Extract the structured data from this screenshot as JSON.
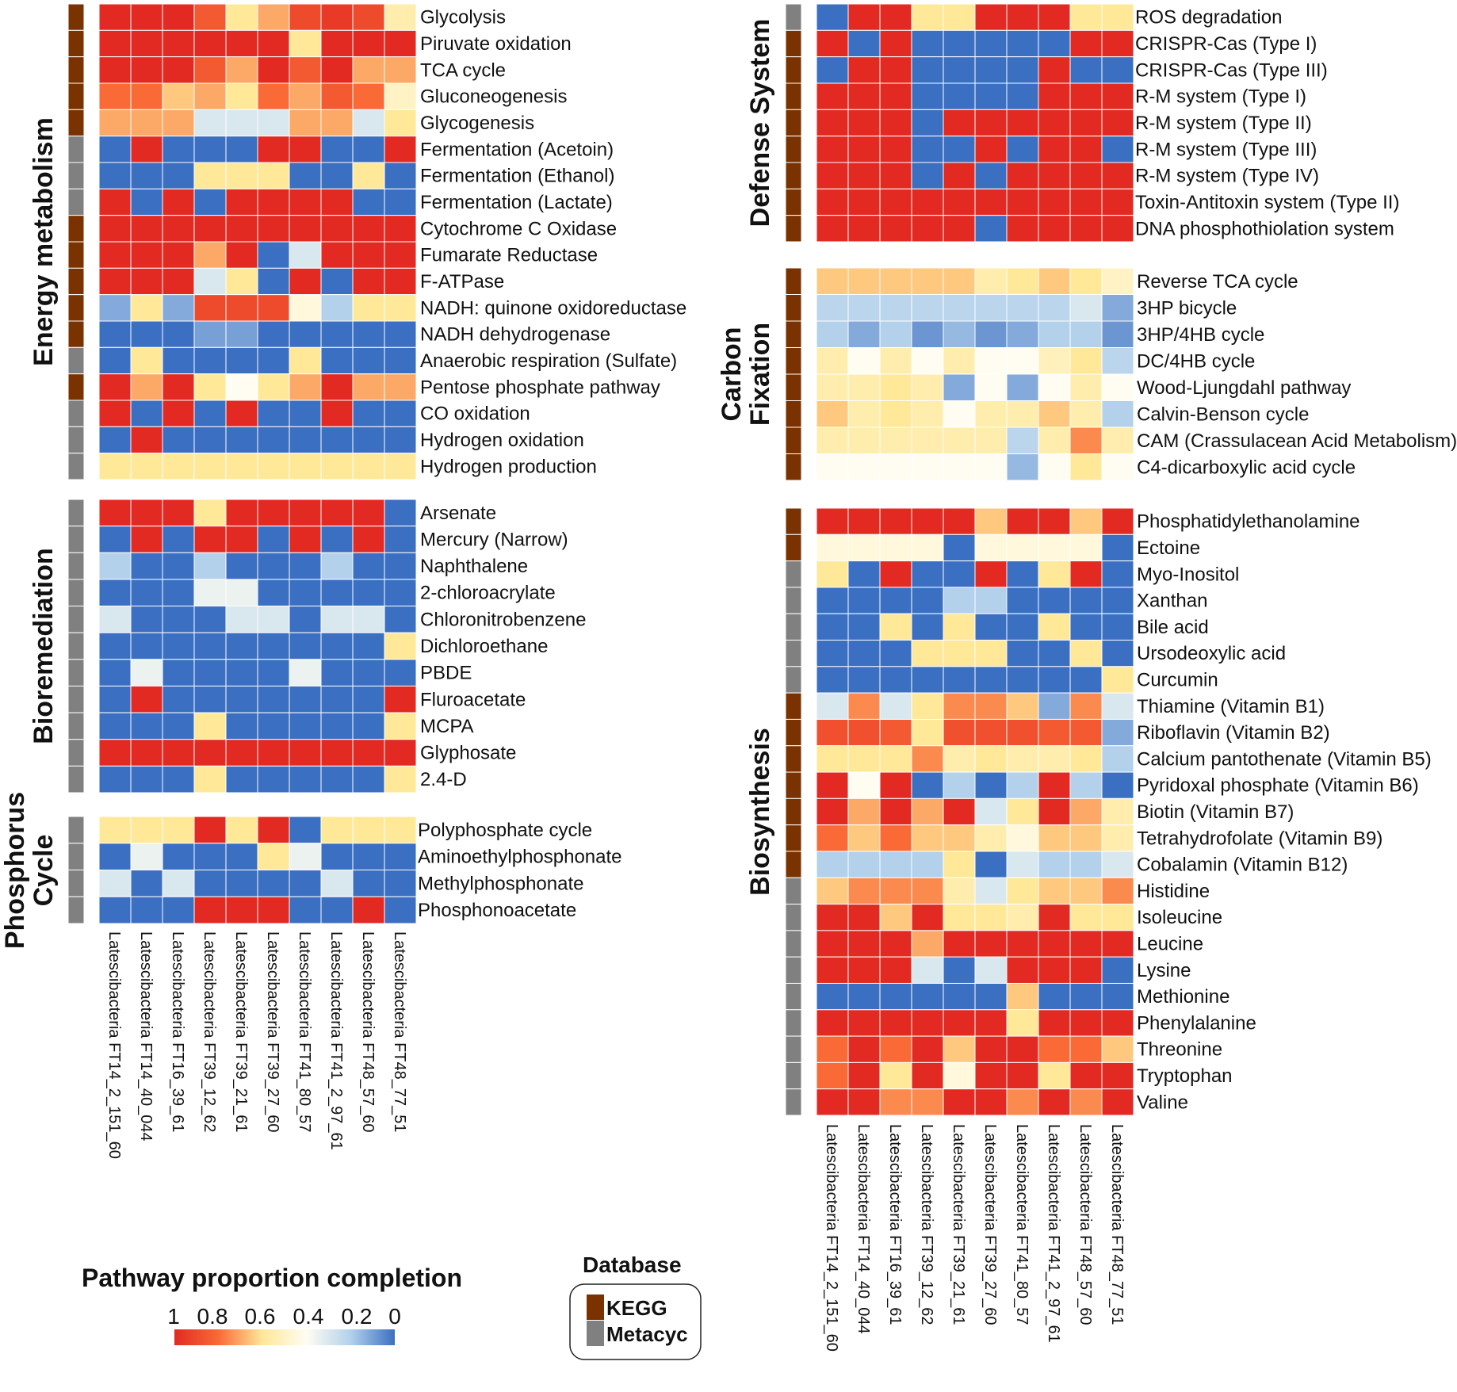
{
  "colors": {
    "kegg": "#7a3300",
    "metacyc": "#808080",
    "scale": [
      "#3b6fc1",
      "#b3d1eb",
      "#fffdf2",
      "#ffe898",
      "#f96a36",
      "#e22a22"
    ]
  },
  "legend": {
    "title": "Pathway proportion completion",
    "ticks": [
      "1",
      "0.8",
      "0.6",
      "0.4",
      "0.2",
      "0"
    ]
  },
  "db_legend": {
    "title": "Database",
    "items": [
      {
        "label": "KEGG",
        "key": "kegg"
      },
      {
        "label": "Metacyc",
        "key": "metacyc"
      }
    ]
  },
  "chart_data": [
    {
      "type": "heatmap",
      "title": "Energy metabolism",
      "columns": [
        "Latescibacteria FT14_2_151_60",
        "Latescibacteria FT14_40_044",
        "Latescibacteria FT16_39_61",
        "Latescibacteria FT39_12_62",
        "Latescibacteria FT39_21_61",
        "Latescibacteria FT39_27_60",
        "Latescibacteria FT41_80_57",
        "Latescibacteria FT41_2_97_61",
        "Latescibacteria FT48_57_60",
        "Latescibacteria FT48_77_51"
      ],
      "rows": [
        "Glycolysis",
        "Piruvate oxidation",
        "TCA cycle",
        "Gluconeogenesis",
        "Glycogenesis",
        "Fermentation (Acetoin)",
        "Fermentation (Ethanol)",
        "Fermentation (Lactate)",
        "Cytochrome C Oxidase",
        "Fumarate Reductase",
        "F-ATPase",
        "NADH: quinone oxidoreductase",
        "NADH dehydrogenase",
        "Anaerobic respiration (Sulfate)",
        "Pentose phosphate pathway",
        "CO oxidation",
        "Hydrogen oxidation",
        "Hydrogen production"
      ],
      "database": [
        "KEGG",
        "KEGG",
        "KEGG",
        "KEGG",
        "KEGG",
        "Metacyc",
        "Metacyc",
        "Metacyc",
        "KEGG",
        "KEGG",
        "KEGG",
        "KEGG",
        "KEGG",
        "Metacyc",
        "KEGG",
        "Metacyc",
        "Metacyc",
        "Metacyc"
      ],
      "values": [
        [
          1,
          1,
          1,
          0.85,
          0.6,
          0.7,
          0.9,
          0.95,
          0.9,
          0.55
        ],
        [
          1,
          1,
          1,
          1,
          1,
          1,
          0.6,
          1,
          1,
          1
        ],
        [
          1,
          1,
          1,
          0.85,
          0.7,
          1,
          0.85,
          1,
          0.7,
          0.7
        ],
        [
          0.8,
          0.8,
          0.65,
          0.7,
          0.6,
          0.8,
          0.7,
          0.85,
          0.8,
          0.5
        ],
        [
          0.7,
          0.7,
          0.7,
          0.3,
          0.3,
          0.3,
          0.7,
          0.7,
          0.3,
          0.6
        ],
        [
          0,
          1,
          0,
          0,
          0,
          1,
          1,
          0,
          0,
          1
        ],
        [
          0,
          0,
          0,
          0.6,
          0.6,
          0.6,
          0,
          0,
          0.6,
          0
        ],
        [
          1,
          0,
          1,
          0,
          1,
          1,
          1,
          1,
          0,
          0
        ],
        [
          1,
          1,
          1,
          1,
          1,
          1,
          1,
          1,
          1,
          1
        ],
        [
          1,
          1,
          1,
          0.7,
          1,
          0,
          0.3,
          1,
          1,
          1
        ],
        [
          1,
          1,
          1,
          0.3,
          0.6,
          0,
          1,
          0,
          1,
          1
        ],
        [
          0.12,
          0.6,
          0.12,
          0.9,
          0.9,
          0.9,
          0.45,
          0.2,
          0.6,
          0.6
        ],
        [
          0,
          0,
          0,
          0.1,
          0.1,
          0,
          0,
          0,
          0,
          0
        ],
        [
          0,
          0.6,
          0,
          0,
          0,
          0,
          0.6,
          0,
          0,
          0
        ],
        [
          1,
          0.7,
          1,
          0.6,
          0.4,
          0.6,
          0.7,
          1,
          0.7,
          0.7
        ],
        [
          1,
          0,
          1,
          0,
          1,
          0,
          0,
          1,
          0,
          0
        ],
        [
          0,
          1,
          0,
          0,
          0,
          0,
          0,
          0,
          0,
          0
        ],
        [
          0.6,
          0.6,
          0.6,
          0.6,
          0.6,
          0.6,
          0.6,
          0.6,
          0.6,
          0.6
        ]
      ]
    },
    {
      "type": "heatmap",
      "title": "Bioremediation",
      "columns": [
        "Latescibacteria FT14_2_151_60",
        "Latescibacteria FT14_40_044",
        "Latescibacteria FT16_39_61",
        "Latescibacteria FT39_12_62",
        "Latescibacteria FT39_21_61",
        "Latescibacteria FT39_27_60",
        "Latescibacteria FT41_80_57",
        "Latescibacteria FT41_2_97_61",
        "Latescibacteria FT48_57_60",
        "Latescibacteria FT48_77_51"
      ],
      "rows": [
        "Arsenate",
        "Mercury (Narrow)",
        "Naphthalene",
        "2-chloroacrylate",
        "Chloronitrobenzene",
        "Dichloroethane",
        "PBDE",
        "Fluroacetate",
        "MCPA",
        "Glyphosate",
        "2.4-D"
      ],
      "database": [
        "Metacyc",
        "Metacyc",
        "Metacyc",
        "Metacyc",
        "Metacyc",
        "Metacyc",
        "Metacyc",
        "Metacyc",
        "Metacyc",
        "Metacyc",
        "Metacyc"
      ],
      "values": [
        [
          1,
          1,
          1,
          0.6,
          1,
          1,
          1,
          1,
          1,
          0
        ],
        [
          0,
          1,
          0,
          1,
          1,
          0,
          1,
          0,
          1,
          0
        ],
        [
          0.2,
          0,
          0,
          0.2,
          0,
          0,
          0,
          0.2,
          0,
          0
        ],
        [
          0,
          0,
          0,
          0.35,
          0.35,
          0,
          0,
          0,
          0,
          0
        ],
        [
          0.3,
          0,
          0,
          0,
          0.3,
          0.3,
          0,
          0.3,
          0.3,
          0
        ],
        [
          0,
          0,
          0,
          0,
          0,
          0,
          0,
          0,
          0,
          0.6
        ],
        [
          0,
          0.35,
          0,
          0,
          0,
          0,
          0.35,
          0,
          0,
          0
        ],
        [
          0,
          1,
          0,
          0,
          0,
          0,
          0,
          0,
          0,
          1
        ],
        [
          0,
          0,
          0,
          0.6,
          0,
          0,
          0,
          0,
          0,
          0.6
        ],
        [
          1,
          1,
          1,
          1,
          1,
          1,
          1,
          1,
          1,
          1
        ],
        [
          0,
          0,
          0,
          0.6,
          0,
          0,
          0,
          0,
          0,
          0.6
        ]
      ]
    },
    {
      "type": "heatmap",
      "title": "Phosphorus Cycle",
      "columns": [
        "Latescibacteria FT14_2_151_60",
        "Latescibacteria FT14_40_044",
        "Latescibacteria FT16_39_61",
        "Latescibacteria FT39_12_62",
        "Latescibacteria FT39_21_61",
        "Latescibacteria FT39_27_60",
        "Latescibacteria FT41_80_57",
        "Latescibacteria FT41_2_97_61",
        "Latescibacteria FT48_57_60",
        "Latescibacteria FT48_77_51"
      ],
      "rows": [
        "Polyphosphate cycle",
        "Aminoethylphosphonate",
        "Methylphosphonate",
        "Phosphonoacetate"
      ],
      "database": [
        "Metacyc",
        "Metacyc",
        "Metacyc",
        "Metacyc"
      ],
      "values": [
        [
          0.6,
          0.6,
          0.6,
          1,
          0.6,
          1,
          0,
          0.6,
          0.6,
          0.6
        ],
        [
          0,
          0.35,
          0,
          0,
          0,
          0.6,
          0.35,
          0,
          0,
          0
        ],
        [
          0.3,
          0,
          0.3,
          0,
          0,
          0,
          0,
          0.3,
          0,
          0
        ],
        [
          0,
          0,
          0,
          1,
          1,
          1,
          0,
          0,
          1,
          0
        ]
      ]
    },
    {
      "type": "heatmap",
      "title": "Defense System",
      "columns": [
        "Latescibacteria FT14_2_151_60",
        "Latescibacteria FT14_40_044",
        "Latescibacteria FT16_39_61",
        "Latescibacteria FT39_12_62",
        "Latescibacteria FT39_21_61",
        "Latescibacteria FT39_27_60",
        "Latescibacteria FT41_80_57",
        "Latescibacteria FT41_2_97_61",
        "Latescibacteria FT48_57_60",
        "Latescibacteria FT48_77_51"
      ],
      "rows": [
        "ROS degradation",
        "CRISPR-Cas (Type I)",
        "CRISPR-Cas (Type III)",
        "R-M system (Type I)",
        "R-M system (Type II)",
        "R-M system (Type III)",
        "R-M system (Type IV)",
        "Toxin-Antitoxin system (Type II)",
        "DNA phosphothiolation system"
      ],
      "database": [
        "Metacyc",
        "KEGG",
        "KEGG",
        "KEGG",
        "KEGG",
        "KEGG",
        "KEGG",
        "KEGG",
        "KEGG"
      ],
      "values": [
        [
          0,
          1,
          1,
          0.6,
          0.6,
          1,
          1,
          1,
          0.6,
          0.6
        ],
        [
          1,
          0,
          1,
          0,
          0,
          0,
          0,
          0,
          1,
          1
        ],
        [
          0,
          1,
          1,
          0,
          0,
          0,
          0,
          1,
          0,
          0
        ],
        [
          1,
          1,
          1,
          0,
          0,
          0,
          0,
          1,
          1,
          1
        ],
        [
          1,
          1,
          1,
          0,
          1,
          1,
          1,
          1,
          1,
          1
        ],
        [
          1,
          1,
          1,
          0,
          0,
          1,
          0,
          1,
          1,
          0
        ],
        [
          1,
          1,
          1,
          0,
          1,
          0,
          1,
          1,
          1,
          1
        ],
        [
          1,
          1,
          1,
          1,
          1,
          1,
          1,
          1,
          1,
          1
        ],
        [
          1,
          1,
          1,
          1,
          1,
          0,
          1,
          1,
          1,
          1
        ]
      ]
    },
    {
      "type": "heatmap",
      "title": "Carbon Fixation",
      "columns": [
        "Latescibacteria FT14_2_151_60",
        "Latescibacteria FT14_40_044",
        "Latescibacteria FT16_39_61",
        "Latescibacteria FT39_12_62",
        "Latescibacteria FT39_21_61",
        "Latescibacteria FT39_27_60",
        "Latescibacteria FT41_80_57",
        "Latescibacteria FT41_2_97_61",
        "Latescibacteria FT48_57_60",
        "Latescibacteria FT48_77_51"
      ],
      "rows": [
        "Reverse TCA cycle",
        "3HP bicycle",
        "3HP/4HB cycle",
        "DC/4HB cycle",
        "Wood-Ljungdahl pathway",
        "Calvin-Benson cycle",
        "CAM (Crassulacean Acid Metabolism)",
        "C4-dicarboxylic acid cycle"
      ],
      "database": [
        "KEGG",
        "KEGG",
        "KEGG",
        "KEGG",
        "KEGG",
        "KEGG",
        "KEGG",
        "KEGG"
      ],
      "values": [
        [
          0.65,
          0.65,
          0.65,
          0.65,
          0.65,
          0.55,
          0.6,
          0.65,
          0.6,
          0.5
        ],
        [
          0.22,
          0.22,
          0.22,
          0.22,
          0.22,
          0.22,
          0.22,
          0.22,
          0.3,
          0.12
        ],
        [
          0.2,
          0.12,
          0.2,
          0.08,
          0.15,
          0.08,
          0.12,
          0.2,
          0.2,
          0.08
        ],
        [
          0.55,
          0.4,
          0.55,
          0.4,
          0.55,
          0.4,
          0.4,
          0.52,
          0.6,
          0.22
        ],
        [
          0.55,
          0.55,
          0.6,
          0.55,
          0.12,
          0.4,
          0.12,
          0.4,
          0.55,
          0.4
        ],
        [
          0.65,
          0.55,
          0.6,
          0.55,
          0.4,
          0.55,
          0.55,
          0.65,
          0.55,
          0.2
        ],
        [
          0.55,
          0.55,
          0.55,
          0.55,
          0.55,
          0.55,
          0.22,
          0.55,
          0.75,
          0.55
        ],
        [
          0.4,
          0.4,
          0.4,
          0.4,
          0.4,
          0.4,
          0.15,
          0.4,
          0.6,
          0.4
        ]
      ]
    },
    {
      "type": "heatmap",
      "title": "Biosynthesis",
      "columns": [
        "Latescibacteria FT14_2_151_60",
        "Latescibacteria FT14_40_044",
        "Latescibacteria FT16_39_61",
        "Latescibacteria FT39_12_62",
        "Latescibacteria FT39_21_61",
        "Latescibacteria FT39_27_60",
        "Latescibacteria FT41_80_57",
        "Latescibacteria FT41_2_97_61",
        "Latescibacteria FT48_57_60",
        "Latescibacteria FT48_77_51"
      ],
      "rows": [
        "Phosphatidylethanolamine",
        "Ectoine",
        "Myo-Inositol",
        "Xanthan",
        "Bile acid",
        "Ursodeoxylic acid",
        "Curcumin",
        "Thiamine (Vitamin B1)",
        "Riboflavin (Vitamin B2)",
        "Calcium pantothenate (Vitamin B5)",
        "Pyridoxal phosphate (Vitamin B6)",
        "Biotin (Vitamin B7)",
        "Tetrahydrofolate (Vitamin B9)",
        "Cobalamin (Vitamin B12)",
        "Histidine",
        "Isoleucine",
        "Leucine",
        "Lysine",
        "Methionine",
        "Phenylalanine",
        "Threonine",
        "Tryptophan",
        "Valine"
      ],
      "database": [
        "KEGG",
        "KEGG",
        "Metacyc",
        "Metacyc",
        "Metacyc",
        "Metacyc",
        "Metacyc",
        "KEGG",
        "KEGG",
        "KEGG",
        "KEGG",
        "KEGG",
        "KEGG",
        "KEGG",
        "Metacyc",
        "Metacyc",
        "Metacyc",
        "Metacyc",
        "Metacyc",
        "Metacyc",
        "Metacyc",
        "Metacyc",
        "Metacyc"
      ],
      "values": [
        [
          1,
          1,
          1,
          1,
          1,
          0.65,
          1,
          1,
          0.65,
          1
        ],
        [
          0.45,
          0.45,
          0.45,
          0.45,
          0,
          0.45,
          0.45,
          0.45,
          0.45,
          0
        ],
        [
          0.6,
          0,
          1,
          0,
          0,
          1,
          0,
          0.6,
          1,
          0
        ],
        [
          0,
          0,
          0,
          0,
          0.2,
          0.2,
          0,
          0,
          0,
          0
        ],
        [
          0,
          0,
          0.6,
          0,
          0.6,
          0,
          0,
          0.6,
          0,
          0
        ],
        [
          0,
          0,
          0,
          0.6,
          0.6,
          0.6,
          0,
          0,
          0.6,
          0
        ],
        [
          0,
          0,
          0,
          0,
          0,
          0,
          0,
          0,
          0,
          0.6
        ],
        [
          0.3,
          0.75,
          0.3,
          0.6,
          0.75,
          0.75,
          0.65,
          0.12,
          0.75,
          0.3
        ],
        [
          0.88,
          0.88,
          0.85,
          0.6,
          0.88,
          0.88,
          0.88,
          0.85,
          0.85,
          0.12
        ],
        [
          0.6,
          0.6,
          0.6,
          0.75,
          0.55,
          0.6,
          0.55,
          0.55,
          0.6,
          0.2
        ],
        [
          1,
          0.4,
          1,
          0,
          0.2,
          0,
          0.2,
          1,
          0.2,
          0
        ],
        [
          1,
          0.7,
          1,
          0.7,
          1,
          0.3,
          0.6,
          1,
          0.7,
          0.55
        ],
        [
          0.8,
          0.65,
          0.8,
          0.65,
          0.65,
          0.55,
          0.45,
          0.65,
          0.65,
          0.55
        ],
        [
          0.2,
          0.2,
          0.2,
          0.2,
          0.6,
          0,
          0.3,
          0.2,
          0.2,
          0.3
        ],
        [
          0.65,
          0.75,
          0.75,
          0.75,
          0.55,
          0.3,
          0.6,
          0.65,
          0.65,
          0.75
        ],
        [
          1,
          1,
          0.65,
          1,
          0.6,
          0.6,
          0.55,
          1,
          0.6,
          0.6
        ],
        [
          1,
          1,
          1,
          0.7,
          1,
          1,
          1,
          1,
          1,
          1
        ],
        [
          1,
          1,
          1,
          0.3,
          0,
          0.3,
          1,
          1,
          1,
          0
        ],
        [
          0,
          0,
          0,
          0,
          0,
          0,
          0.65,
          0,
          0,
          0
        ],
        [
          1,
          1,
          1,
          1,
          1,
          1,
          0.6,
          1,
          1,
          1
        ],
        [
          0.8,
          1,
          0.8,
          1,
          0.65,
          1,
          1,
          0.8,
          0.8,
          0.65
        ],
        [
          0.8,
          1,
          0.6,
          1,
          0.45,
          1,
          1,
          0.6,
          1,
          1
        ],
        [
          1,
          1,
          0.75,
          0.75,
          1,
          1,
          0.75,
          1,
          0.75,
          1
        ]
      ]
    }
  ]
}
